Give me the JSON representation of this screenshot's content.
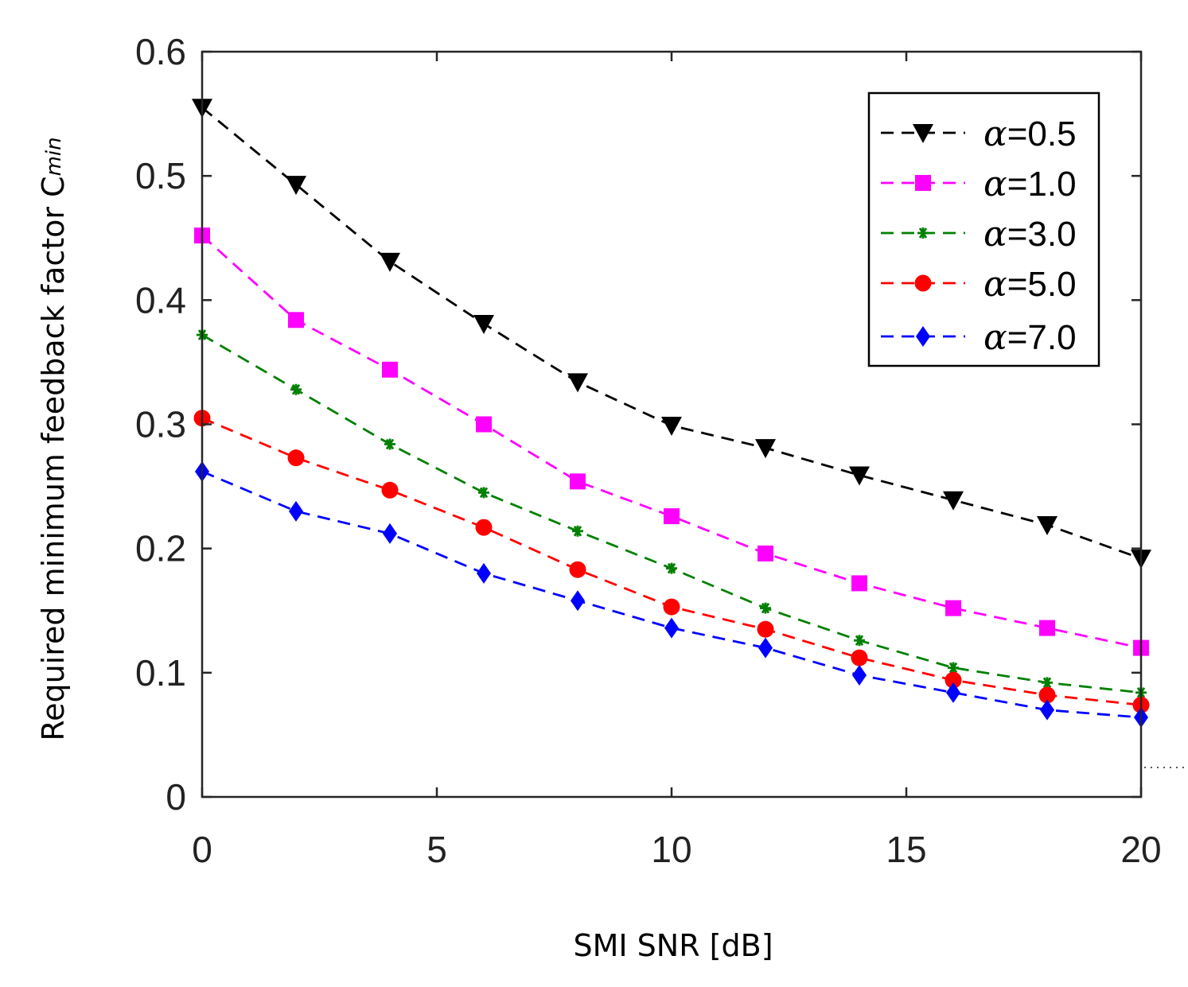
{
  "chart_data": {
    "type": "line",
    "title": "",
    "xlabel": "SMI SNR [dB]",
    "ylabel": "Required minimum feedback factor C",
    "ylabel_symbol": "C",
    "ylabel_subscript": "min",
    "xlim": [
      0,
      20
    ],
    "ylim": [
      0,
      0.6
    ],
    "xticks": [
      0,
      5,
      10,
      15,
      20
    ],
    "xtick_labels": [
      "0",
      "5",
      "10",
      "15",
      "20"
    ],
    "yticks": [
      0,
      0.1,
      0.2,
      0.3,
      0.4,
      0.5,
      0.6
    ],
    "ytick_labels": [
      "0",
      "0.1",
      "0.2",
      "0.3",
      "0.4",
      "0.5",
      "0.6"
    ],
    "grid": false,
    "legend_position": "top-right",
    "x": [
      0,
      2,
      4,
      6,
      8,
      10,
      12,
      14,
      16,
      18,
      20
    ],
    "series": [
      {
        "name": "α=0.5",
        "symbol": "α",
        "value_label": "=0.5",
        "color": "#000000",
        "marker": "triangle-down",
        "values": [
          0.555,
          0.493,
          0.431,
          0.381,
          0.334,
          0.299,
          0.281,
          0.259,
          0.239,
          0.219,
          0.192
        ]
      },
      {
        "name": "α=1.0",
        "symbol": "α",
        "value_label": "=1.0",
        "color": "#ff00ff",
        "marker": "square",
        "values": [
          0.452,
          0.384,
          0.344,
          0.3,
          0.254,
          0.226,
          0.196,
          0.172,
          0.152,
          0.136,
          0.12
        ]
      },
      {
        "name": "α=3.0",
        "symbol": "α",
        "value_label": "=3.0",
        "color": "#008000",
        "marker": "asterisk",
        "values": [
          0.372,
          0.328,
          0.284,
          0.245,
          0.214,
          0.184,
          0.152,
          0.126,
          0.104,
          0.092,
          0.084
        ]
      },
      {
        "name": "α=5.0",
        "symbol": "α",
        "value_label": "=5.0",
        "color": "#ff0000",
        "marker": "circle",
        "values": [
          0.305,
          0.273,
          0.247,
          0.217,
          0.183,
          0.153,
          0.135,
          0.112,
          0.094,
          0.082,
          0.074
        ]
      },
      {
        "name": "α=7.0",
        "symbol": "α",
        "value_label": "=7.0",
        "color": "#0000ff",
        "marker": "diamond",
        "values": [
          0.262,
          0.23,
          0.212,
          0.18,
          0.158,
          0.136,
          0.12,
          0.098,
          0.084,
          0.07,
          0.064
        ]
      }
    ]
  }
}
